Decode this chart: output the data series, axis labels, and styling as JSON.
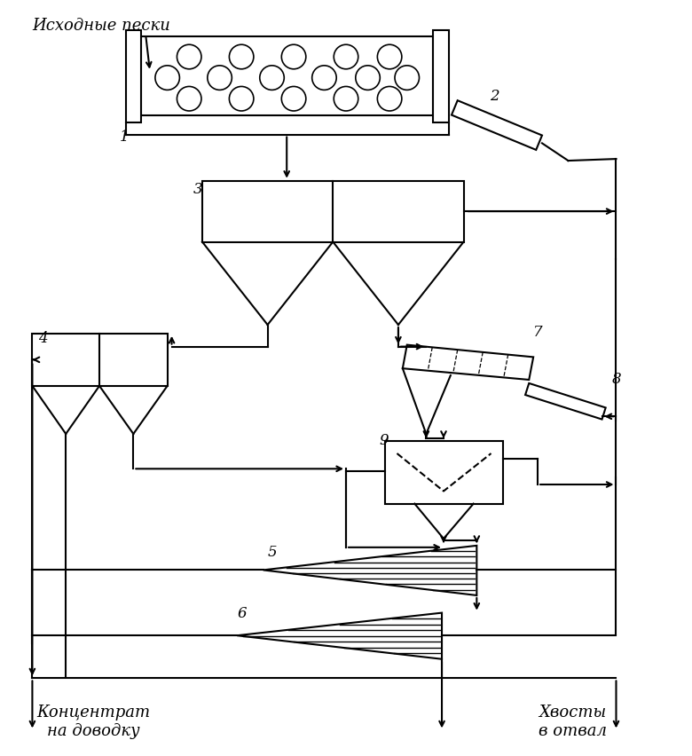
{
  "bg_color": "#ffffff",
  "line_color": "#000000",
  "fig_width": 7.8,
  "fig_height": 8.52,
  "title_text": "Исходные пески",
  "bottom_left_text": "Концентрат\nна доводку",
  "bottom_right_text": "Хвосты\nв отвал"
}
